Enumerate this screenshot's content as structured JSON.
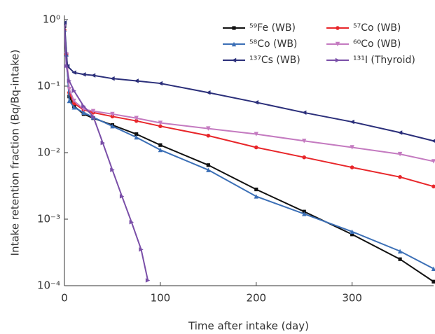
{
  "chart_data": {
    "type": "line",
    "x_label": "Time after intake (day)",
    "y_label": "Intake retention fraction (Bq/Bq-intake)",
    "xlim": [
      0,
      385
    ],
    "xticks": [
      0,
      100,
      200,
      300
    ],
    "ylim": [
      0.0001,
      1
    ],
    "log_y": true,
    "yticks": [
      {
        "value": 1,
        "label": "10⁰"
      },
      {
        "value": 0.1,
        "label": "10⁻¹"
      },
      {
        "value": 0.01,
        "label": "10⁻²"
      },
      {
        "value": 0.001,
        "label": "10⁻³"
      },
      {
        "value": 0.0001,
        "label": "10⁻⁴"
      }
    ],
    "legend": "top-right",
    "series": [
      {
        "name": "⁵⁹Fe (WB)",
        "color": "#111111",
        "marker": "square",
        "x": [
          0,
          2,
          5,
          10,
          20,
          30,
          50,
          75,
          100,
          150,
          200,
          250,
          300,
          350,
          385
        ],
        "values": [
          0.8,
          0.3,
          0.07,
          0.05,
          0.038,
          0.033,
          0.026,
          0.019,
          0.013,
          0.0065,
          0.0028,
          0.0013,
          0.00059,
          0.00025,
          0.000115
        ]
      },
      {
        "name": "⁵⁷Co (WB)",
        "color": "#e8262a",
        "marker": "circle",
        "x": [
          0,
          2,
          5,
          10,
          20,
          30,
          50,
          75,
          100,
          150,
          200,
          250,
          300,
          350,
          385
        ],
        "values": [
          0.7,
          0.3,
          0.08,
          0.055,
          0.044,
          0.04,
          0.035,
          0.03,
          0.025,
          0.018,
          0.012,
          0.0085,
          0.006,
          0.0043,
          0.0031
        ]
      },
      {
        "name": "⁵⁸Co (WB)",
        "color": "#3b6fb6",
        "marker": "triangle-up",
        "x": [
          0,
          2,
          5,
          10,
          20,
          30,
          50,
          75,
          100,
          150,
          200,
          250,
          300,
          350,
          385
        ],
        "values": [
          0.7,
          0.3,
          0.06,
          0.048,
          0.04,
          0.034,
          0.025,
          0.017,
          0.011,
          0.0055,
          0.0022,
          0.0012,
          0.00065,
          0.00033,
          0.00018
        ]
      },
      {
        "name": "⁶⁰Co (WB)",
        "color": "#c47ac0",
        "marker": "triangle-down",
        "x": [
          0,
          2,
          5,
          10,
          20,
          30,
          50,
          75,
          100,
          150,
          200,
          250,
          300,
          350,
          385
        ],
        "values": [
          0.8,
          0.3,
          0.09,
          0.06,
          0.045,
          0.042,
          0.038,
          0.033,
          0.028,
          0.023,
          0.019,
          0.015,
          0.012,
          0.0095,
          0.0074
        ]
      },
      {
        "name": "¹³⁷Cs (WB)",
        "color": "#2b2f7a",
        "marker": "triangle-left",
        "x": [
          0,
          3,
          10,
          20,
          30,
          50,
          75,
          100,
          150,
          200,
          250,
          300,
          350,
          385
        ],
        "values": [
          0.9,
          0.2,
          0.16,
          0.15,
          0.145,
          0.13,
          0.12,
          0.11,
          0.08,
          0.057,
          0.04,
          0.029,
          0.02,
          0.015
        ]
      },
      {
        "name": "¹³¹I (Thyroid)",
        "color": "#7a4fa8",
        "marker": "triangle-right",
        "x": [
          0,
          2,
          5,
          10,
          20,
          30,
          40,
          50,
          60,
          70,
          80,
          87
        ],
        "values": [
          0.8,
          0.2,
          0.12,
          0.085,
          0.05,
          0.035,
          0.014,
          0.0055,
          0.0022,
          0.0009,
          0.00035,
          0.00012
        ]
      }
    ]
  }
}
